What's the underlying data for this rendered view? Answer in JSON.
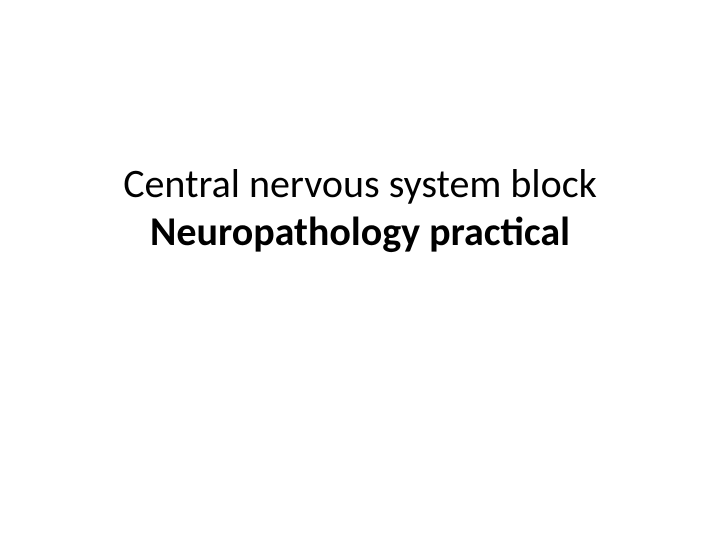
{
  "slide": {
    "title_line1": "Central nervous system block",
    "title_line2": "Neuropathology practical",
    "background_color": "#ffffff",
    "text_color": "#000000",
    "font_family": "Calibri",
    "title_fontsize": 40,
    "line1_weight": 400,
    "line2_weight": 700
  }
}
